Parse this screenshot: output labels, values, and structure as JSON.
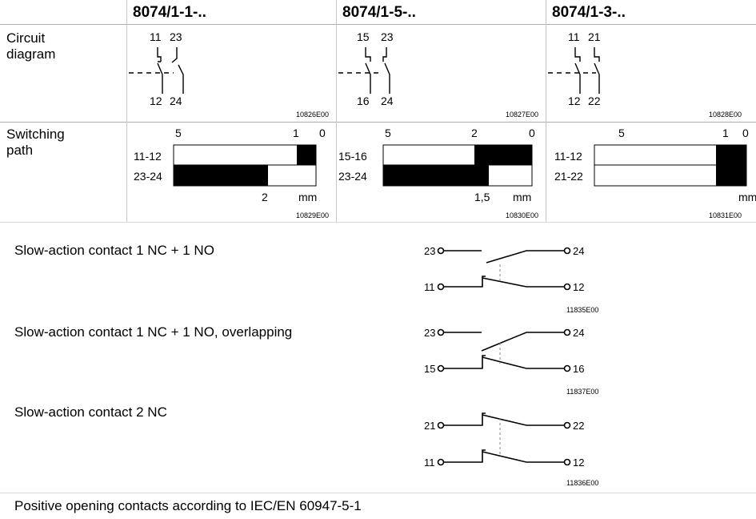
{
  "table": {
    "columns": [
      "8074/1-1-..",
      "8074/1-5-..",
      "8074/1-3-.."
    ],
    "rows": [
      "Circuit\ndiagram",
      "Switching\npath"
    ],
    "row1": {
      "l1": "Circuit",
      "l2": "diagram"
    },
    "row2": {
      "l1": "Switching",
      "l2": "path"
    },
    "circuit": [
      {
        "top_a": "11",
        "top_b": "23",
        "bot_a": "12",
        "bot_b": "24",
        "code": "10826E00"
      },
      {
        "top_a": "15",
        "top_b": "23",
        "bot_a": "16",
        "bot_b": "24",
        "code": "10827E00"
      },
      {
        "top_a": "11",
        "top_b": "21",
        "bot_a": "12",
        "bot_b": "22",
        "code": "10828E00"
      }
    ],
    "switching": [
      {
        "t5": "5",
        "t1": "1",
        "t0": "0",
        "r1": "11-12",
        "r2": "23-24",
        "bottom": "2",
        "unit": "mm",
        "code": "10829E00"
      },
      {
        "t5": "5",
        "t1": "2",
        "t0": "0",
        "r1": "15-16",
        "r2": "23-24",
        "bottom": "1,5",
        "unit": "mm",
        "code": "10830E00"
      },
      {
        "t5": "5",
        "t1": "1",
        "t0": "0",
        "r1": "11-12",
        "r2": "21-22",
        "bottom": "",
        "unit": "mm",
        "code": "10831E00"
      }
    ]
  },
  "contacts": [
    {
      "title": "Slow-action contact 1 NC + 1 NO",
      "t1": "23",
      "t2": "24",
      "b1": "11",
      "b2": "12",
      "code": "11835E00"
    },
    {
      "title": "Slow-action contact 1 NC + 1 NO, overlapping",
      "t1": "23",
      "t2": "24",
      "b1": "15",
      "b2": "16",
      "code": "11837E00"
    },
    {
      "title": "Slow-action contact 2 NC",
      "t1": "21",
      "t2": "22",
      "b1": "11",
      "b2": "12",
      "code": "11836E00"
    }
  ],
  "footer": "Positive opening contacts according to IEC/EN 60947-5-1"
}
